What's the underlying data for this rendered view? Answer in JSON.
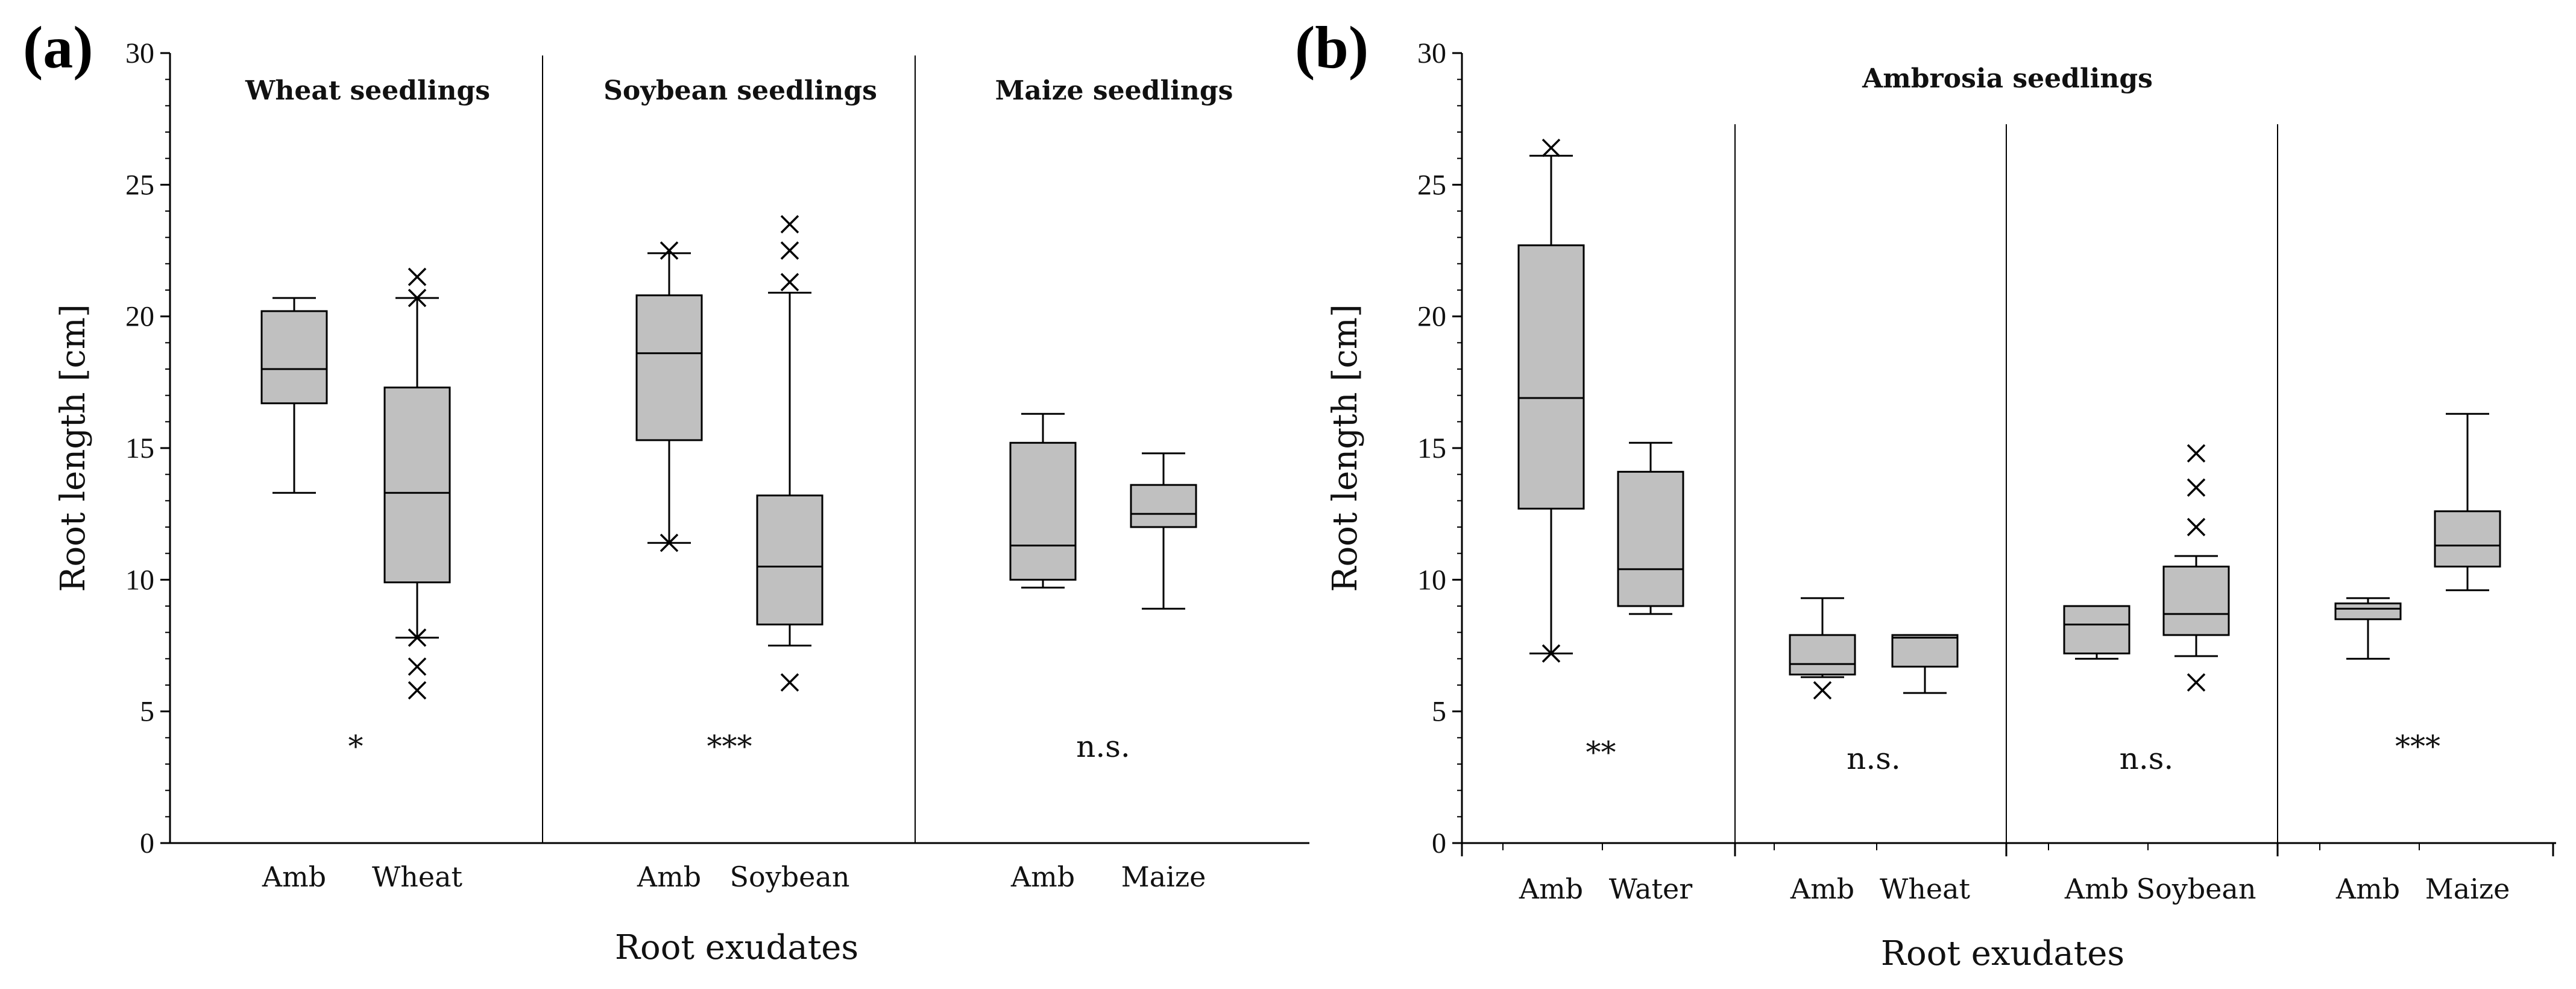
{
  "chart_data": [
    {
      "panel_label": "(a)",
      "type": "boxplot",
      "ylabel": "Root length [cm]",
      "xlabel": "Root exudates",
      "ylim": [
        0,
        30
      ],
      "yticks": [
        "0",
        "5",
        "10",
        "15",
        "20",
        "25",
        "30"
      ],
      "groups": [
        {
          "title": "Wheat seedlings",
          "significance": "*",
          "boxes": [
            {
              "label": "Amb",
              "min": 13.3,
              "q1": 16.7,
              "median": 18.0,
              "q3": 20.2,
              "max": 20.7,
              "outliers": []
            },
            {
              "label": "Wheat",
              "min": 7.8,
              "q1": 9.9,
              "median": 13.3,
              "q3": 17.3,
              "max": 20.7,
              "outliers": [
                21.5,
                20.7,
                7.8,
                6.7,
                5.8
              ]
            }
          ]
        },
        {
          "title": "Soybean seedlings",
          "significance": "***",
          "boxes": [
            {
              "label": "Amb",
              "min": 11.4,
              "q1": 15.3,
              "median": 18.6,
              "q3": 20.8,
              "max": 22.4,
              "outliers": [
                22.5,
                11.4
              ]
            },
            {
              "label": "Soybean",
              "min": 7.5,
              "q1": 8.3,
              "median": 10.5,
              "q3": 13.2,
              "max": 20.9,
              "outliers": [
                23.5,
                22.5,
                21.3,
                6.1
              ]
            }
          ]
        },
        {
          "title": "Maize seedlings",
          "significance": "n.s.",
          "boxes": [
            {
              "label": "Amb",
              "min": 9.7,
              "q1": 10.0,
              "median": 11.3,
              "q3": 15.2,
              "max": 16.3,
              "outliers": []
            },
            {
              "label": "Maize",
              "min": 8.9,
              "q1": 12.0,
              "median": 12.5,
              "q3": 13.6,
              "max": 14.8,
              "outliers": []
            }
          ]
        }
      ]
    },
    {
      "panel_label": "(b)",
      "type": "boxplot",
      "ylabel": "Root length [cm]",
      "xlabel": "Root exudates",
      "ylim": [
        0,
        30
      ],
      "yticks": [
        "0",
        "5",
        "10",
        "15",
        "20",
        "25",
        "30"
      ],
      "title": "Ambrosia seedlings",
      "groups": [
        {
          "significance": "**",
          "boxes": [
            {
              "label": "Amb",
              "min": 7.2,
              "q1": 12.7,
              "median": 16.9,
              "q3": 22.7,
              "max": 26.1,
              "outliers": [
                26.4,
                7.2
              ]
            },
            {
              "label": "Water",
              "min": 8.7,
              "q1": 9.0,
              "median": 10.4,
              "q3": 14.1,
              "max": 15.2,
              "outliers": []
            }
          ]
        },
        {
          "significance": "n.s.",
          "boxes": [
            {
              "label": "Amb",
              "min": 6.3,
              "q1": 6.4,
              "median": 6.8,
              "q3": 7.9,
              "max": 9.3,
              "outliers": [
                5.8
              ]
            },
            {
              "label": "Wheat",
              "min": 5.7,
              "q1": 6.7,
              "median": 7.8,
              "q3": 7.9,
              "max": 7.9,
              "outliers": []
            }
          ]
        },
        {
          "significance": "n.s.",
          "boxes": [
            {
              "label": "Amb",
              "min": 7.0,
              "q1": 7.2,
              "median": 8.3,
              "q3": 9.0,
              "max": 9.0,
              "outliers": []
            },
            {
              "label": "Soybean",
              "min": 7.1,
              "q1": 7.9,
              "median": 8.7,
              "q3": 10.5,
              "max": 10.9,
              "outliers": [
                14.8,
                13.5,
                12.0,
                6.1
              ]
            }
          ]
        },
        {
          "significance": "***",
          "boxes": [
            {
              "label": "Amb",
              "min": 7.0,
              "q1": 8.5,
              "median": 8.9,
              "q3": 9.1,
              "max": 9.3,
              "outliers": []
            },
            {
              "label": "Maize",
              "min": 9.6,
              "q1": 10.5,
              "median": 11.3,
              "q3": 12.6,
              "max": 16.3,
              "outliers": []
            }
          ]
        }
      ]
    }
  ],
  "colors": {
    "box_fill": "#c0c0c0",
    "stroke": "#000000",
    "text": "#111111",
    "background": "#ffffff"
  }
}
